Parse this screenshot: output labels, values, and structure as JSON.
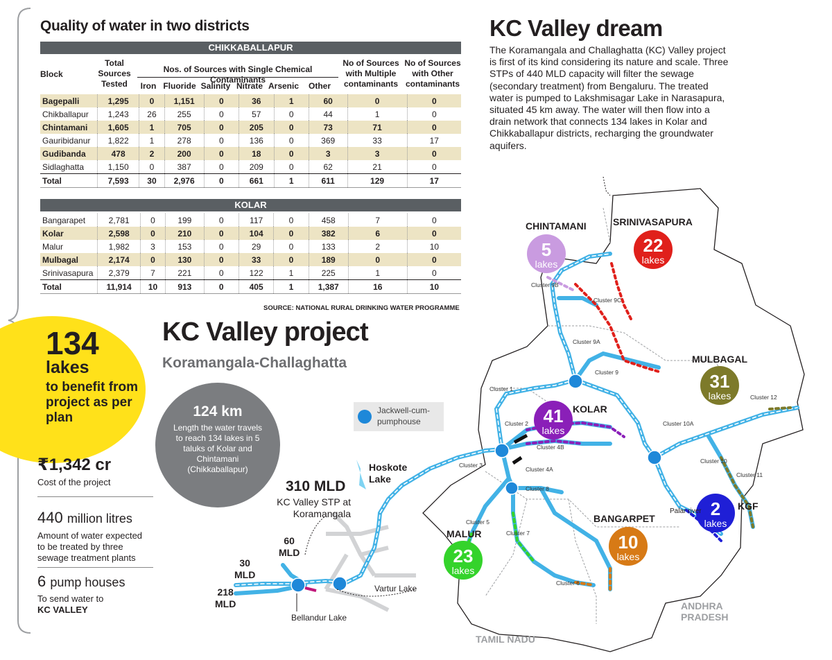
{
  "table": {
    "title": "Quality of water in two districts",
    "district1": "CHIKKABALLAPUR",
    "district2": "KOLAR",
    "headers": {
      "block": "Block",
      "total": "Total\nSources\nTested",
      "single": "Nos. of Sources with Single Chemical Contaminants",
      "iron": "Iron",
      "fluoride": "Fluoride",
      "salinity": "Salinity",
      "nitrate": "Nitrate",
      "arsenic": "Arsenic",
      "other": "Other",
      "multiple": "No of Sources\nwith Multiple\ncontaminants",
      "other_cont": "No of Sources\nwith Other\ncontaminants"
    },
    "chikka_rows": [
      [
        "Bagepalli",
        "1,295",
        "0",
        "1,151",
        "0",
        "36",
        "1",
        "60",
        "0",
        "0"
      ],
      [
        "Chikballapur",
        "1,243",
        "26",
        "255",
        "0",
        "57",
        "0",
        "44",
        "1",
        "0"
      ],
      [
        "Chintamani",
        "1,605",
        "1",
        "705",
        "0",
        "205",
        "0",
        "73",
        "71",
        "0"
      ],
      [
        "Gauribidanur",
        "1,822",
        "1",
        "278",
        "0",
        "136",
        "0",
        "369",
        "33",
        "17"
      ],
      [
        "Gudibanda",
        "478",
        "2",
        "200",
        "0",
        "18",
        "0",
        "3",
        "3",
        "0"
      ],
      [
        "Sidlaghatta",
        "1,150",
        "0",
        "387",
        "0",
        "209",
        "0",
        "62",
        "21",
        "0"
      ]
    ],
    "chikka_total": [
      "Total",
      "7,593",
      "30",
      "2,976",
      "0",
      "661",
      "1",
      "611",
      "129",
      "17"
    ],
    "kolar_rows": [
      [
        "Bangarapet",
        "2,781",
        "0",
        "199",
        "0",
        "117",
        "0",
        "458",
        "7",
        "0"
      ],
      [
        "Kolar",
        "2,598",
        "0",
        "210",
        "0",
        "104",
        "0",
        "382",
        "6",
        "0"
      ],
      [
        "Malur",
        "1,982",
        "3",
        "153",
        "0",
        "29",
        "0",
        "133",
        "2",
        "10"
      ],
      [
        "Mulbagal",
        "2,174",
        "0",
        "130",
        "0",
        "33",
        "0",
        "189",
        "0",
        "0"
      ],
      [
        "Srinivasapura",
        "2,379",
        "7",
        "221",
        "0",
        "122",
        "1",
        "225",
        "1",
        "0"
      ]
    ],
    "kolar_total": [
      "Total",
      "11,914",
      "10",
      "913",
      "0",
      "405",
      "1",
      "1,387",
      "16",
      "10"
    ],
    "source": "SOURCE: NATIONAL RURAL DRINKING WATER PROGRAMME"
  },
  "dream": {
    "title": "KC Valley dream",
    "body": "The Koramangala and Challaghatta (KC) Valley project is first of its kind considering its nature and scale. Three STPs of 440 MLD capacity will filter the sewage (secondary treatment) from Bengaluru. The treated water is pumped to Lakshmisagar Lake in Narasapura, situated 45 km away. The water will then flow into a drain network that connects 134 lakes in Kolar and Chikkaballapur districts, recharging the groundwater aquifers."
  },
  "stats": {
    "lakes_num": "134",
    "lakes_word": "lakes",
    "lakes_text": "to benefit from project as per plan",
    "cost": "₹1,342 cr",
    "cost_label": "Cost of the project",
    "water": "440",
    "water_unit": "million litres",
    "water_label": "Amount of water expected to be treated by three sewage treatment plants",
    "pump": "6",
    "pump_unit": "pump houses",
    "pump_label": "To send water to",
    "pump_label_bold": "KC VALLEY"
  },
  "project": {
    "title": "KC Valley project",
    "subtitle": "Koramangala-Challaghatta",
    "km": "124 km",
    "km_text": "Length the water travels to reach 134 lakes in 5 taluks of Kolar and Chintamani (Chikkaballapur)",
    "legend": "Jackwell-cum-pumphouse"
  },
  "map": {
    "districts": {
      "chintamani": "CHINTAMANI",
      "srinivasapura": "SRINIVASAPURA",
      "mulbagal": "MULBAGAL",
      "kolar": "KOLAR",
      "bangarpet": "BANGARPET",
      "malur": "MALUR",
      "kgf": "KGF",
      "andhra": "ANDHRA\nPRADESH",
      "tamil": "TAMIL NADU"
    },
    "lake_counts": {
      "chintamani": "5",
      "srinivasapura": "22",
      "mulbagal": "31",
      "kolar": "41",
      "kgf": "2",
      "bangarpet": "10",
      "malur": "23",
      "word": "lakes"
    },
    "colors": {
      "chintamani": "#c99be0",
      "srinivasapura": "#e0201b",
      "mulbagal": "#7d7a2a",
      "kolar": "#8a1fb8",
      "kgf": "#1f1fd6",
      "bangarpet": "#d77a16",
      "malur": "#34d32b",
      "pipe": "#42b2e6"
    },
    "clusters": [
      "Cluster 9B",
      "Cluster 9C",
      "Cluster 9A",
      "Cluster 9",
      "Cluster 1",
      "Cluster 2",
      "Cluster 3",
      "Cluster 4B",
      "Cluster 4A",
      "Cluster 8",
      "Cluster 5",
      "Cluster 7",
      "Cluster 6",
      "Cluster 10A",
      "Cluster 10",
      "Cluster 11",
      "Cluster 12"
    ],
    "places": {
      "hoskote": "Hoskote\nLake",
      "stp_mld": "310 MLD",
      "stp_name": "KC Valley STP at\nKoramangala",
      "m60": "60\nMLD",
      "m30": "30\nMLD",
      "m218": "218\nMLD",
      "vartur": "Vartur Lake",
      "bellandur": "Bellandur Lake",
      "palar": "Palar river"
    }
  }
}
